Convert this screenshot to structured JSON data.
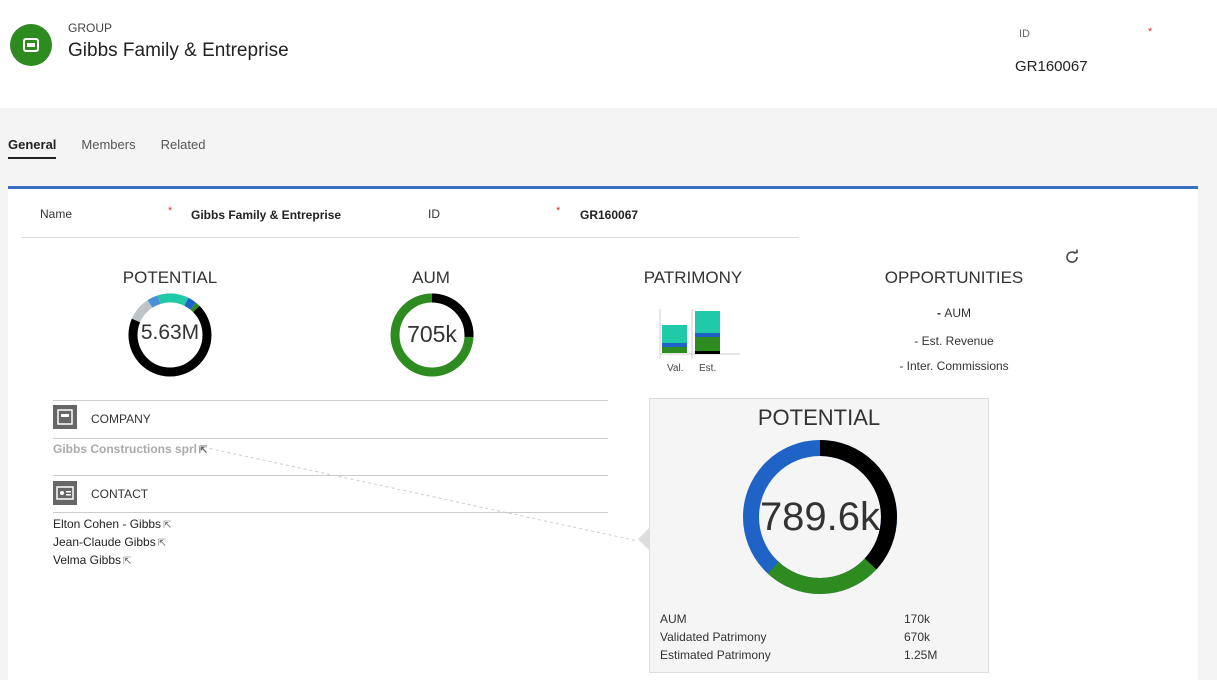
{
  "header": {
    "entity_type": "GROUP",
    "title": "Gibbs Family & Entreprise",
    "id_label": "ID",
    "id_required": "*",
    "id_value": "GR160067",
    "icon": "group-icon",
    "icon_color": "#2e8b1f"
  },
  "tabs": [
    {
      "label": "General",
      "active": true
    },
    {
      "label": "Members",
      "active": false
    },
    {
      "label": "Related",
      "active": false
    }
  ],
  "form": {
    "name_label": "Name",
    "name_required": "*",
    "name_value": "Gibbs Family & Entreprise",
    "id_label": "ID",
    "id_required": "*",
    "id_value": "GR160067"
  },
  "kpis": {
    "potential": {
      "title": "POTENTIAL",
      "value": "5.63M"
    },
    "aum": {
      "title": "AUM",
      "value": "705k"
    },
    "patrimony": {
      "title": "PATRIMONY",
      "labels": [
        "Val.",
        "Est."
      ]
    },
    "opportunities": {
      "title": "OPPORTUNITIES",
      "items": [
        "AUM",
        "Est. Revenue",
        "Inter. Commissions"
      ]
    }
  },
  "company": {
    "heading": "COMPANY",
    "items": [
      "Gibbs Constructions sprl"
    ]
  },
  "contact": {
    "heading": "CONTACT",
    "items": [
      "Elton Cohen - Gibbs",
      "Jean-Claude Gibbs",
      "Velma Gibbs"
    ]
  },
  "popup": {
    "title": "POTENTIAL",
    "value": "789.6k",
    "rows": [
      {
        "label": "AUM",
        "value": "170k"
      },
      {
        "label": "Validated Patrimony",
        "value": "670k"
      },
      {
        "label": "Estimated Patrimony",
        "value": "1.25M"
      }
    ]
  },
  "colors": {
    "accent": "#3b6fc2",
    "green": "#2e8b1f",
    "blue": "#1f63c6",
    "teal": "#20c9a8",
    "black": "#000000"
  }
}
